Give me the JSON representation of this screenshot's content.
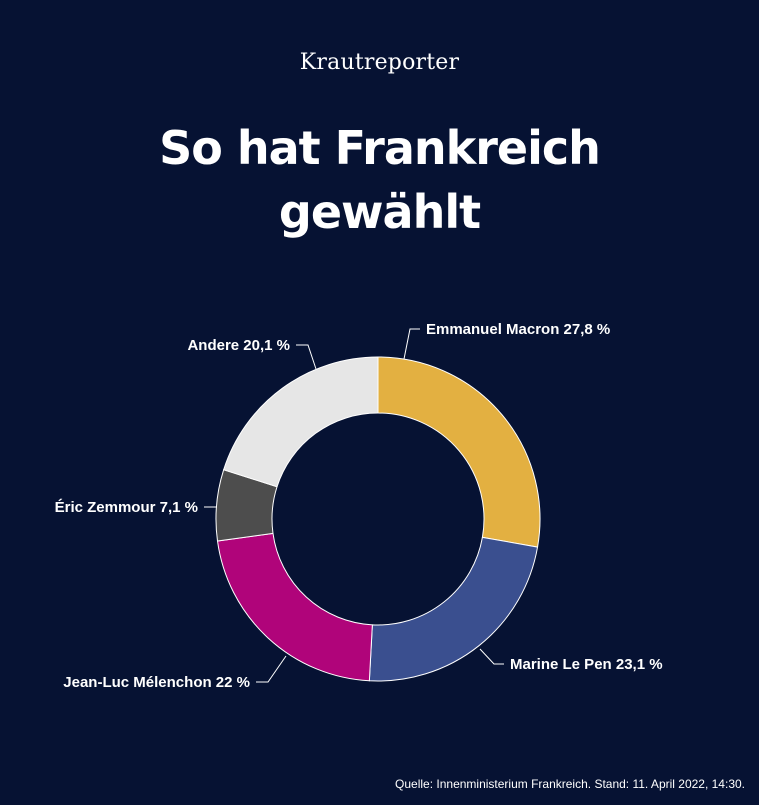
{
  "header": {
    "brand": "Krautreporter",
    "title_line1": "So hat Frankreich",
    "title_line2": "gewählt"
  },
  "chart_data": {
    "type": "pie",
    "donut": true,
    "slices": [
      {
        "label": "Emmanuel Macron 27,8 %",
        "value": 27.8,
        "color": "#e3b041"
      },
      {
        "label": "Marine Le Pen 23,1 %",
        "value": 23.1,
        "color": "#3a4f8f"
      },
      {
        "label": "Jean-Luc Mélenchon 22 %",
        "value": 22.0,
        "color": "#b0047a"
      },
      {
        "label": "Éric Zemmour 7,1 %",
        "value": 7.1,
        "color": "#4d4d4d"
      },
      {
        "label": "Andere 20,1 %",
        "value": 20.1,
        "color": "#e6e6e6"
      }
    ]
  },
  "footer": {
    "source": "Quelle: Innenministerium Frankreich. Stand: 11. April 2022, 14:30."
  }
}
